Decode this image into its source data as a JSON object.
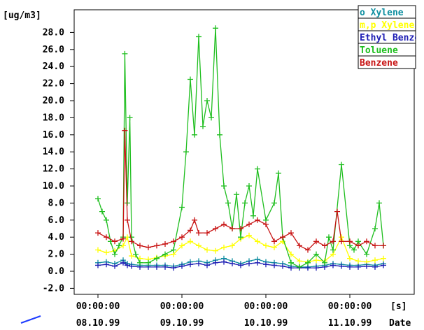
{
  "chart_data": {
    "type": "line",
    "ylabel": "[ug/m3]",
    "xunit": "[s]",
    "xlabel": "Date",
    "ylim": [
      -2.0,
      29.0
    ],
    "yticks": [
      "28.0",
      "26.0",
      "24.0",
      "22.0",
      "20.0",
      "18.0",
      "16.0",
      "14.0",
      "12.0",
      "10.0",
      "8.0",
      "6.0",
      "4.0",
      "2.0",
      "0.0",
      "-2.0"
    ],
    "yticks_values": [
      28,
      26,
      24,
      22,
      20,
      18,
      16,
      14,
      12,
      10,
      8,
      6,
      4,
      2,
      0,
      -2
    ],
    "xlim": [
      0.0,
      3.6
    ],
    "xticks": [
      {
        "x": 0,
        "time": "00:00:00",
        "date": "08.10.99"
      },
      {
        "x": 1,
        "time": "00:00:00",
        "date": "09.10.99"
      },
      {
        "x": 2,
        "time": "00:00:00",
        "date": "10.10.99"
      },
      {
        "x": 3,
        "time": "00:00:00",
        "date": "11.10.99"
      }
    ],
    "legend_position": "top-right",
    "grid": false,
    "series": [
      {
        "name": "o Xylene",
        "color": "#0f8fa0",
        "x": [
          0.0,
          0.1,
          0.2,
          0.3,
          0.35,
          0.4,
          0.5,
          0.6,
          0.7,
          0.8,
          0.9,
          1.0,
          1.1,
          1.2,
          1.3,
          1.4,
          1.5,
          1.6,
          1.7,
          1.8,
          1.9,
          2.0,
          2.1,
          2.2,
          2.3,
          2.4,
          2.5,
          2.6,
          2.7,
          2.8,
          2.9,
          3.0,
          3.1,
          3.2,
          3.3,
          3.4
        ],
        "values": [
          1.0,
          1.1,
          0.9,
          1.3,
          0.9,
          0.8,
          0.7,
          0.7,
          0.7,
          0.7,
          0.6,
          0.8,
          1.1,
          1.2,
          1.0,
          1.3,
          1.5,
          1.2,
          0.9,
          1.2,
          1.4,
          1.1,
          1.0,
          0.9,
          0.6,
          0.5,
          0.5,
          0.6,
          0.7,
          0.9,
          0.8,
          0.7,
          0.7,
          0.8,
          0.7,
          0.9
        ]
      },
      {
        "name": "m,p Xylene",
        "color": "#ffff00",
        "x": [
          0.0,
          0.1,
          0.2,
          0.3,
          0.35,
          0.4,
          0.5,
          0.6,
          0.7,
          0.8,
          0.9,
          1.0,
          1.1,
          1.2,
          1.3,
          1.4,
          1.5,
          1.6,
          1.7,
          1.8,
          1.9,
          2.0,
          2.1,
          2.2,
          2.3,
          2.4,
          2.5,
          2.6,
          2.7,
          2.8,
          2.9,
          3.0,
          3.1,
          3.2,
          3.3,
          3.4
        ],
        "values": [
          2.5,
          2.2,
          2.4,
          3.0,
          4.0,
          1.8,
          1.5,
          1.4,
          1.6,
          1.8,
          2.0,
          3.0,
          3.5,
          3.0,
          2.5,
          2.4,
          2.8,
          3.0,
          3.8,
          4.2,
          3.5,
          3.0,
          2.8,
          3.5,
          2.0,
          1.2,
          1.1,
          1.3,
          1.2,
          2.0,
          4.0,
          1.5,
          1.2,
          1.1,
          1.3,
          1.5
        ]
      },
      {
        "name": "Ethyl Benzene",
        "color": "#1e1eb4",
        "x": [
          0.0,
          0.1,
          0.2,
          0.3,
          0.35,
          0.4,
          0.5,
          0.6,
          0.7,
          0.8,
          0.9,
          1.0,
          1.1,
          1.2,
          1.3,
          1.4,
          1.5,
          1.6,
          1.7,
          1.8,
          1.9,
          2.0,
          2.1,
          2.2,
          2.3,
          2.4,
          2.5,
          2.6,
          2.7,
          2.8,
          2.9,
          3.0,
          3.1,
          3.2,
          3.3,
          3.4
        ],
        "values": [
          0.7,
          0.8,
          0.6,
          1.0,
          0.7,
          0.6,
          0.5,
          0.5,
          0.5,
          0.5,
          0.4,
          0.6,
          0.8,
          0.9,
          0.7,
          1.0,
          1.1,
          0.9,
          0.7,
          0.9,
          1.0,
          0.8,
          0.7,
          0.6,
          0.4,
          0.4,
          0.4,
          0.4,
          0.5,
          0.7,
          0.6,
          0.5,
          0.5,
          0.6,
          0.5,
          0.7
        ]
      },
      {
        "name": "Toluene",
        "color": "#1ebe1e",
        "x": [
          0.0,
          0.05,
          0.1,
          0.15,
          0.2,
          0.25,
          0.3,
          0.32,
          0.35,
          0.38,
          0.4,
          0.45,
          0.5,
          0.6,
          0.7,
          0.8,
          0.9,
          1.0,
          1.05,
          1.1,
          1.15,
          1.2,
          1.25,
          1.3,
          1.35,
          1.4,
          1.45,
          1.5,
          1.55,
          1.6,
          1.65,
          1.7,
          1.75,
          1.8,
          1.85,
          1.9,
          2.0,
          2.1,
          2.15,
          2.2,
          2.3,
          2.4,
          2.5,
          2.6,
          2.7,
          2.75,
          2.8,
          2.9,
          3.0,
          3.05,
          3.1,
          3.2,
          3.3,
          3.35,
          3.4
        ],
        "values": [
          8.5,
          7.0,
          6.0,
          3.5,
          2.0,
          3.0,
          4.0,
          25.5,
          8.0,
          18.0,
          4.0,
          2.0,
          1.0,
          1.0,
          1.5,
          2.0,
          2.5,
          7.5,
          14.0,
          22.5,
          16.0,
          27.5,
          17.0,
          20.0,
          18.0,
          28.5,
          16.0,
          10.0,
          8.0,
          5.0,
          9.0,
          4.0,
          8.0,
          10.0,
          6.5,
          12.0,
          6.0,
          8.0,
          11.5,
          4.0,
          1.0,
          0.5,
          1.0,
          2.0,
          1.0,
          4.0,
          2.5,
          12.5,
          3.0,
          2.5,
          3.5,
          2.0,
          5.0,
          8.0,
          3.0
        ]
      },
      {
        "name": "Benzene",
        "color": "#c81414",
        "x": [
          0.0,
          0.1,
          0.2,
          0.3,
          0.32,
          0.35,
          0.4,
          0.5,
          0.6,
          0.7,
          0.8,
          0.9,
          1.0,
          1.1,
          1.15,
          1.2,
          1.3,
          1.4,
          1.5,
          1.6,
          1.7,
          1.8,
          1.9,
          2.0,
          2.1,
          2.2,
          2.3,
          2.4,
          2.5,
          2.6,
          2.7,
          2.8,
          2.85,
          2.9,
          3.0,
          3.1,
          3.2,
          3.3,
          3.4
        ],
        "values": [
          4.5,
          4.0,
          3.5,
          3.8,
          16.5,
          6.0,
          3.5,
          3.0,
          2.8,
          3.0,
          3.2,
          3.5,
          4.0,
          4.8,
          6.0,
          4.5,
          4.5,
          5.0,
          5.5,
          5.0,
          5.0,
          5.5,
          6.0,
          5.5,
          3.5,
          4.0,
          4.5,
          3.0,
          2.5,
          3.5,
          3.0,
          3.5,
          7.0,
          3.5,
          3.5,
          3.0,
          3.5,
          3.0,
          3.0
        ]
      }
    ]
  }
}
